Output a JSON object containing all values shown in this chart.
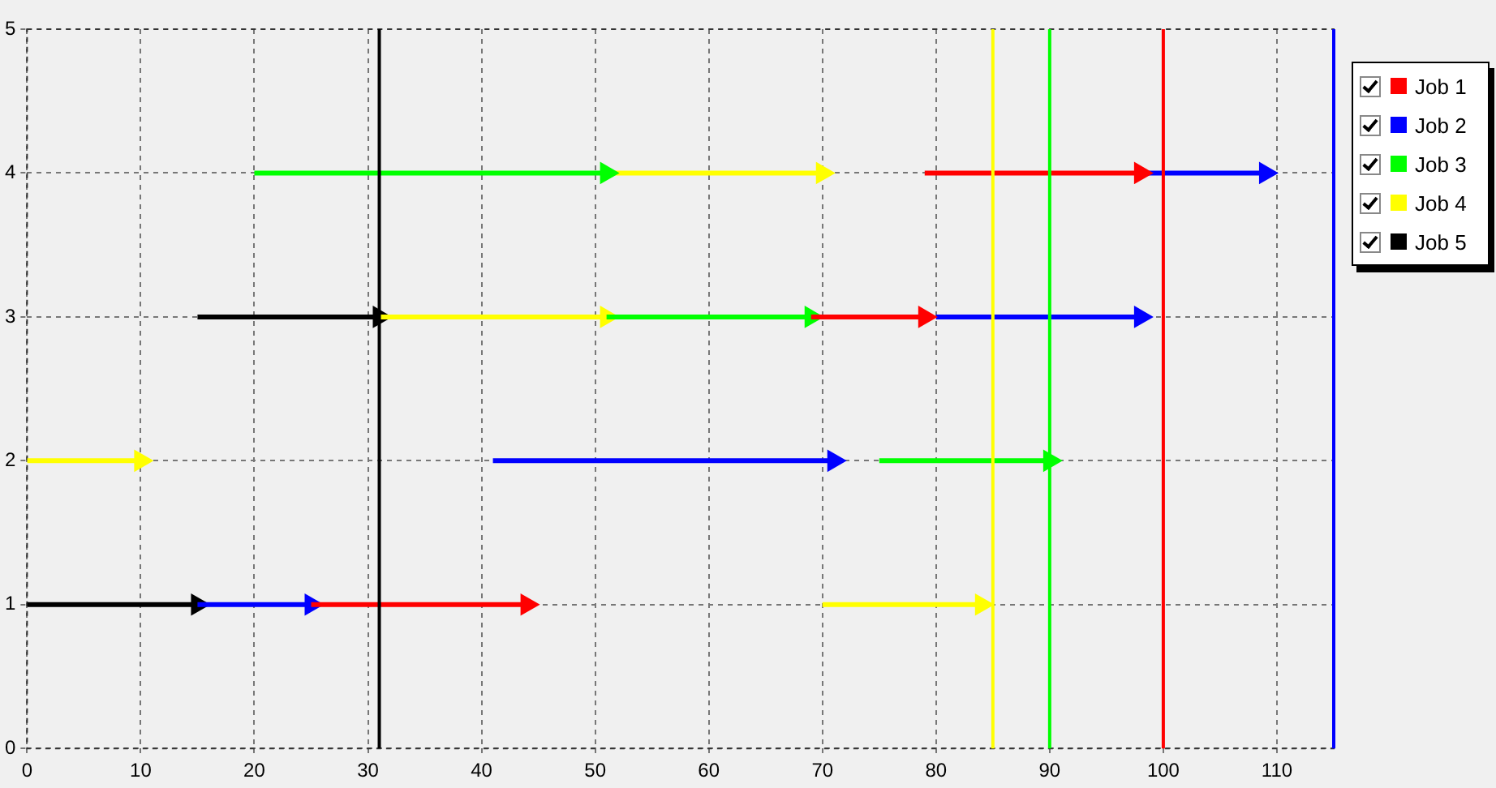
{
  "chart_data": {
    "type": "line",
    "marker": "triangle",
    "line_style": "solid",
    "grid": true,
    "legend": "top right",
    "xlim": [
      0,
      115
    ],
    "xticks": [
      0,
      10,
      20,
      30,
      40,
      50,
      60,
      70,
      80,
      90,
      100,
      110
    ],
    "ylim": [
      0,
      5
    ],
    "yticks": [
      0,
      1,
      2,
      3,
      4,
      5
    ],
    "series": [
      {
        "name": "Job 1",
        "color": "#ff0000",
        "x": [
          25,
          44,
          null,
          69,
          79,
          null,
          79,
          98
        ],
        "values": [
          1,
          1,
          null,
          3,
          3,
          null,
          4,
          4
        ]
      },
      {
        "name": "Job 2",
        "color": "#0000ff",
        "x": [
          15,
          25,
          null,
          41,
          71,
          null,
          80,
          98,
          null,
          98,
          109
        ],
        "values": [
          1,
          1,
          null,
          2,
          2,
          null,
          3,
          3,
          null,
          4,
          4
        ]
      },
      {
        "name": "Job 3",
        "color": "#00ff00",
        "x": [
          75,
          90,
          null,
          51,
          69,
          null,
          20,
          51
        ],
        "values": [
          2,
          2,
          null,
          3,
          3,
          null,
          4,
          4
        ]
      },
      {
        "name": "Job 4",
        "color": "#ffff00",
        "x": [
          70,
          84,
          null,
          0,
          10,
          null,
          31,
          51,
          null,
          51,
          70
        ],
        "values": [
          1,
          1,
          null,
          2,
          2,
          null,
          3,
          3,
          null,
          4,
          4
        ]
      },
      {
        "name": "Job 5",
        "color": "#000000",
        "x": [
          0,
          15,
          null,
          15,
          31
        ],
        "values": [
          1,
          1,
          null,
          3,
          3
        ]
      }
    ],
    "ref_lines": [
      {
        "axis": "x",
        "value": 31,
        "color": "#000000"
      },
      {
        "axis": "x",
        "value": 85,
        "color": "#ffff00"
      },
      {
        "axis": "x",
        "value": 90,
        "color": "#00ff00"
      },
      {
        "axis": "x",
        "value": 100,
        "color": "#ff0000"
      },
      {
        "axis": "x",
        "value": 115,
        "color": "#0000ff"
      }
    ]
  }
}
